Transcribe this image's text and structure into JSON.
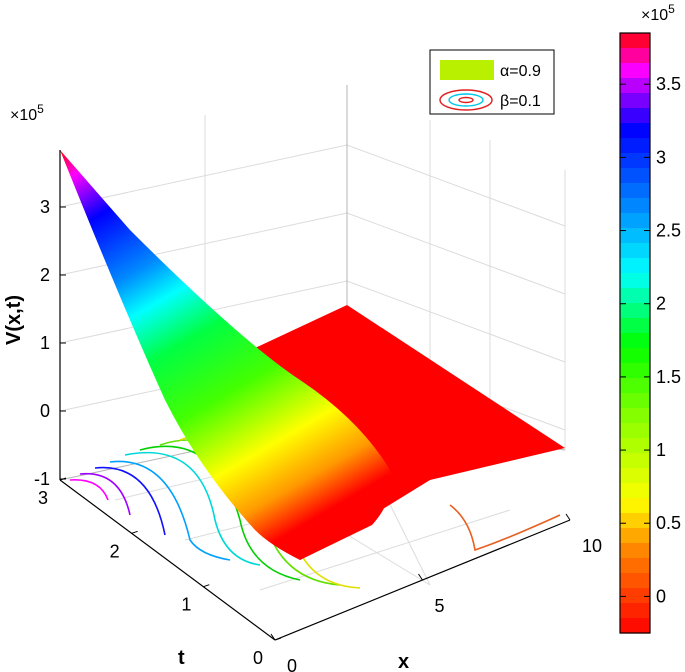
{
  "chart_data": {
    "type": "surface3d",
    "title": "",
    "xlabel": "x",
    "ylabel": "t",
    "zlabel": "V(x,t)",
    "z_multiplier": "×10",
    "z_multiplier_exp": "5",
    "colorbar_multiplier": "×10",
    "colorbar_multiplier_exp": "5",
    "x_ticks": [
      "0",
      "5",
      "10"
    ],
    "t_ticks": [
      "0",
      "1",
      "2",
      "3"
    ],
    "z_ticks": [
      "-1",
      "0",
      "1",
      "2",
      "3"
    ],
    "colorbar_ticks": [
      "0",
      "0.5",
      "1",
      "1.5",
      "2",
      "2.5",
      "3",
      "3.5"
    ],
    "xlim": [
      0,
      10
    ],
    "tlim": [
      0,
      3
    ],
    "zlim": [
      -1,
      3.8
    ],
    "colorbar_range": [
      -0.25,
      3.85
    ],
    "grid": true,
    "legend_position": "top-right",
    "legend": [
      {
        "label": "α=0.9",
        "marker": "filled-box",
        "color": "#b8f000"
      },
      {
        "label": "β=0.1",
        "marker": "contour-rings",
        "color": "#e02020"
      }
    ],
    "surface_samples": [
      {
        "x": 0,
        "t": 3,
        "v": 3.8
      },
      {
        "x": 0,
        "t": 2,
        "v": 2.3
      },
      {
        "x": 0,
        "t": 1,
        "v": 1.0
      },
      {
        "x": 0,
        "t": 0,
        "v": 0.0
      },
      {
        "x": 5,
        "t": 3,
        "v": 0.0
      },
      {
        "x": 10,
        "t": 3,
        "v": 0.0
      },
      {
        "x": 10,
        "t": 0,
        "v": 0.0
      }
    ],
    "colormap": [
      "#ff0000",
      "#ff8800",
      "#ffff00",
      "#00ff00",
      "#00ffff",
      "#0000ff",
      "#ff00ff",
      "#ff0000"
    ]
  }
}
